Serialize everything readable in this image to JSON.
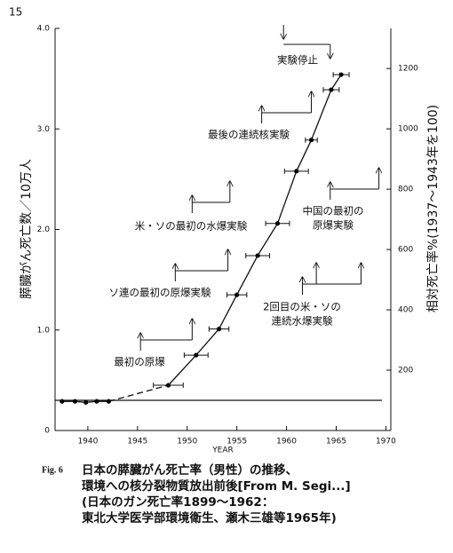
{
  "page_number": "15",
  "chart_data": {
    "type": "line",
    "x_label": "YEAR",
    "y_label": "膵臓がん死亡数／10万人",
    "y2_label": "相対死亡率%(1937～1943年を100)",
    "x": [
      1937.4,
      1938.7,
      1939.8,
      1940.9,
      1942.1,
      1948.1,
      1950.9,
      1953.2,
      1955.0,
      1957.1,
      1959.1,
      1961.0,
      1962.5,
      1964.5,
      1965.5
    ],
    "values": [
      0.29,
      0.29,
      0.28,
      0.29,
      0.29,
      0.45,
      0.75,
      1.01,
      1.35,
      1.74,
      2.06,
      2.58,
      2.89,
      3.39,
      3.54
    ],
    "xerr": [
      null,
      null,
      null,
      null,
      null,
      1.5,
      1.2,
      1.0,
      1.0,
      1.2,
      1.2,
      1.2,
      0.6,
      0.8,
      0.8
    ],
    "color": "#000000",
    "xlim": [
      1936.7,
      1970.5
    ],
    "xticks": [
      1940,
      1945,
      1950,
      1955,
      1960,
      1965,
      1970
    ],
    "ylim": [
      0,
      4
    ],
    "yticks": [
      0,
      {
        "value": 1,
        "label": "1.0"
      },
      {
        "value": 2,
        "label": "2.0"
      },
      {
        "value": 3,
        "label": "3.0"
      },
      {
        "value": 4,
        "label": "4.0"
      }
    ],
    "y2lim": [
      0,
      1333
    ],
    "y2ticks": [
      200,
      400,
      600,
      800,
      1000,
      1200
    ],
    "reference_y2": 100,
    "annotations": [
      {
        "lines": [
          "最初の原爆"
        ],
        "years": [
          1945.3,
          1950.5
        ]
      },
      {
        "lines": [
          "ソ連の最初の原爆実験"
        ],
        "years": [
          1948.8,
          1954.1
        ]
      },
      {
        "lines": [
          "米・ソの最初の水爆実験"
        ],
        "years": [
          1950.5,
          1954.3
        ]
      },
      {
        "lines": [
          "最後の連続核実験"
        ],
        "years": [
          1957.5,
          1962.5
        ]
      },
      {
        "lines": [
          "中国の最初の",
          "原爆実験"
        ],
        "years": [
          1964.4,
          1969.3
        ]
      },
      {
        "lines": [
          "2回目の米・ソの",
          "連続水爆実験"
        ],
        "years": [
          1961.6,
          1963.0,
          1967.5
        ]
      },
      {
        "lines": [
          "実験停止"
        ],
        "years": [
          1959.7,
          1964.4
        ]
      }
    ]
  },
  "caption": {
    "figure": "Fig. 6",
    "lines": [
      "日本の膵臓がん死亡率（男性）の推移、",
      "環境への核分裂物質放出前後[From M. Segi...]",
      "(日本のガン死亡率1899～1962：",
      "東北大学医学部環境衛生、瀬木三雄等1965年)"
    ]
  }
}
